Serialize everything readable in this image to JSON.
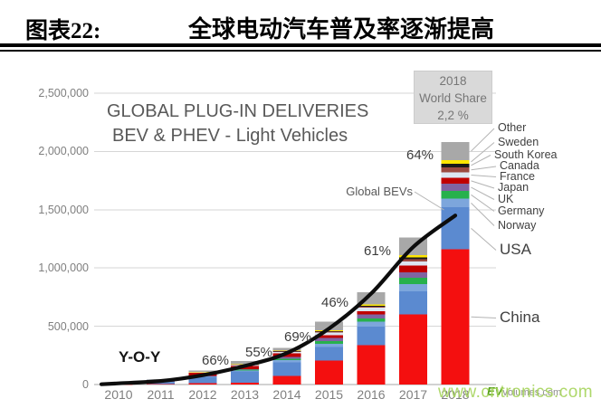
{
  "header": {
    "figure_label": "图表22:",
    "title": "全球电动汽车普及率逐渐提高"
  },
  "chart": {
    "title_line1": "GLOBAL PLUG-IN DELIVERIES",
    "title_line2": "BEV & PHEV - Light Vehicles",
    "yoy_label": "Y-O-Y",
    "global_bevs_label": "Global BEVs",
    "world_share_box": {
      "line1": "2018",
      "line2": "World Share",
      "line3": "2,2 %"
    },
    "watermark": "www.cntronics.com",
    "logo": {
      "ev": "EV",
      "rest": "volumes.com"
    }
  },
  "chart_data": {
    "type": "bar",
    "stacked": true,
    "title": "GLOBAL PLUG-IN DELIVERIES BEV & PHEV - Light Vehicles",
    "xlabel": "",
    "ylabel": "",
    "ylim": [
      0,
      2500000
    ],
    "grid": true,
    "legend_position": "right",
    "y_ticks": [
      "0",
      "500,000",
      "1,000,000",
      "1,500,000",
      "2,000,000",
      "2,500,000"
    ],
    "y_tick_values": [
      0,
      500000,
      1000000,
      1500000,
      2000000,
      2500000
    ],
    "categories": [
      "2010",
      "2011",
      "2012",
      "2013",
      "2014",
      "2015",
      "2016",
      "2017",
      "2018"
    ],
    "note": "values estimated from bar pixel heights",
    "series": [
      {
        "name": "China",
        "color": "#f40f0f",
        "values": [
          1000,
          5000,
          12000,
          16000,
          73000,
          207000,
          336000,
          600000,
          1160000
        ]
      },
      {
        "name": "USA",
        "color": "#5b8ad0",
        "values": [
          1000,
          18000,
          53000,
          97000,
          118000,
          115000,
          160000,
          200000,
          361000
        ]
      },
      {
        "name": "Norway",
        "color": "#7da6dc",
        "values": [
          1000,
          2000,
          4000,
          8000,
          18000,
          26000,
          45000,
          62000,
          73000
        ]
      },
      {
        "name": "Germany",
        "color": "#27b14c",
        "values": [
          0,
          2000,
          3000,
          6000,
          13000,
          23000,
          25000,
          55000,
          68000
        ]
      },
      {
        "name": "UK",
        "color": "#8064a2",
        "values": [
          0,
          1000,
          2000,
          4000,
          15000,
          28000,
          37000,
          47000,
          60000
        ]
      },
      {
        "name": "Japan",
        "color": "#c00000",
        "values": [
          2000,
          13000,
          25000,
          29000,
          32000,
          25000,
          25000,
          56000,
          52000
        ]
      },
      {
        "name": "France",
        "color": "#dce6f2",
        "values": [
          0,
          3000,
          6000,
          9000,
          12000,
          23000,
          30000,
          37000,
          46000
        ]
      },
      {
        "name": "Canada",
        "color": "#9c4a41",
        "values": [
          0,
          1000,
          2000,
          3000,
          5000,
          7000,
          11000,
          19000,
          44000
        ]
      },
      {
        "name": "South Korea",
        "color": "#1a1a1a",
        "values": [
          0,
          0,
          1000,
          1000,
          2000,
          3000,
          5000,
          14000,
          32000
        ]
      },
      {
        "name": "Sweden",
        "color": "#ffe600",
        "values": [
          0,
          1000,
          1000,
          2000,
          5000,
          9000,
          13000,
          20000,
          29000
        ]
      },
      {
        "name": "Other",
        "color": "#a8a8a8",
        "values": [
          8000,
          1000,
          11000,
          25000,
          22000,
          74000,
          103000,
          150000,
          155000
        ]
      }
    ],
    "legend_order_top_to_bottom": [
      "Other",
      "Sweden",
      "South Korea",
      "Canada",
      "France",
      "Japan",
      "UK",
      "Germany",
      "Norway",
      "USA",
      "China"
    ],
    "yoy_growth_labels": [
      {
        "year": "2013",
        "label": "66%"
      },
      {
        "year": "2014",
        "label": "55%"
      },
      {
        "year": "2015",
        "label": "69%"
      },
      {
        "year": "2016",
        "label": "46%"
      },
      {
        "year": "2017",
        "label": "61%"
      },
      {
        "year": "2018",
        "label": "64%"
      }
    ],
    "trend_line": {
      "name": "Y-O-Y",
      "color": "#0d0d0d",
      "axis_values": [
        10000,
        30000,
        80000,
        160000,
        270000,
        480000,
        780000,
        1180000,
        1450000
      ]
    }
  }
}
